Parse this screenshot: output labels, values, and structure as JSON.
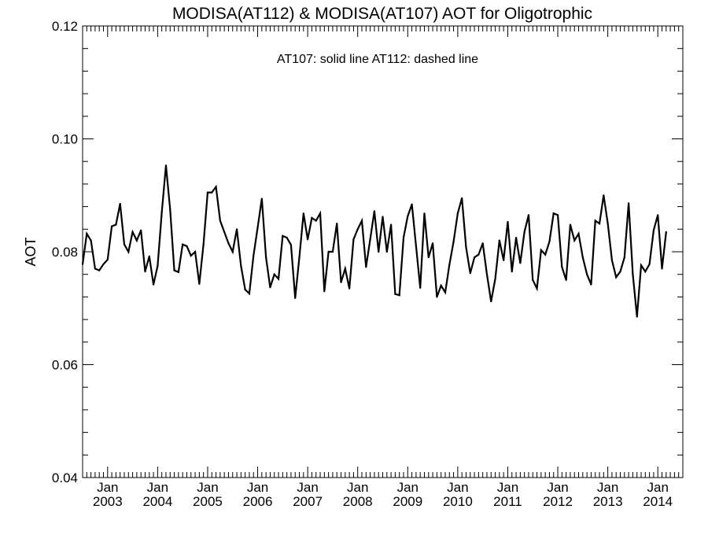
{
  "chart_data": {
    "type": "line",
    "title": "MODISA(AT112) & MODISA(AT107)  AOT for Oligotrophic",
    "annotation": "AT107: solid line   AT112: dashed line",
    "ylabel": "AOT",
    "xlabel": "",
    "xlim": [
      "2002-07",
      "2014-07"
    ],
    "ylim": [
      0.04,
      0.12
    ],
    "y_ticks": [
      "0.04",
      "0.06",
      "0.08",
      "0.10",
      "0.12"
    ],
    "x_tick_month": "Jan",
    "x_tick_years": [
      "2003",
      "2004",
      "2005",
      "2006",
      "2007",
      "2008",
      "2009",
      "2010",
      "2011",
      "2012",
      "2013",
      "2014"
    ],
    "line_color": "#000000",
    "series": [
      {
        "x_start": "2002-07",
        "x_step": "1 month",
        "values": [
          0.0778,
          0.0832,
          0.082,
          0.077,
          0.0767,
          0.0778,
          0.0786,
          0.0845,
          0.0848,
          0.0885,
          0.0813,
          0.08,
          0.0835,
          0.082,
          0.0838,
          0.0765,
          0.0792,
          0.0742,
          0.0775,
          0.087,
          0.0953,
          0.0875,
          0.0767,
          0.0764,
          0.0813,
          0.081,
          0.0793,
          0.08,
          0.0743,
          0.0813,
          0.0905,
          0.0905,
          0.0915,
          0.0855,
          0.0835,
          0.0815,
          0.08,
          0.084,
          0.0775,
          0.0733,
          0.0726,
          0.0793,
          0.0843,
          0.0894,
          0.079,
          0.0737,
          0.076,
          0.0752,
          0.0828,
          0.0825,
          0.0812,
          0.0718,
          0.079,
          0.0868,
          0.0822,
          0.086,
          0.0855,
          0.0868,
          0.073,
          0.08,
          0.08,
          0.085,
          0.0746,
          0.077,
          0.0735,
          0.0822,
          0.084,
          0.0855,
          0.0773,
          0.0822,
          0.0872,
          0.08,
          0.0862,
          0.08,
          0.0848,
          0.0725,
          0.0723,
          0.0825,
          0.0863,
          0.0884,
          0.081,
          0.0736,
          0.0868,
          0.079,
          0.0815,
          0.072,
          0.074,
          0.0728,
          0.0777,
          0.0818,
          0.0868,
          0.0895,
          0.0808,
          0.0762,
          0.079,
          0.0795,
          0.0815,
          0.076,
          0.0712,
          0.0752,
          0.082,
          0.0785,
          0.0853,
          0.0765,
          0.0825,
          0.078,
          0.0835,
          0.0865,
          0.075,
          0.0735,
          0.0803,
          0.0795,
          0.0818,
          0.0868,
          0.0865,
          0.0773,
          0.075,
          0.0848,
          0.082,
          0.0832,
          0.079,
          0.076,
          0.0742,
          0.0855,
          0.085,
          0.09,
          0.085,
          0.0785,
          0.0755,
          0.0765,
          0.079,
          0.0886,
          0.076,
          0.0685,
          0.0776,
          0.0765,
          0.0778,
          0.0838,
          0.0865,
          0.077,
          0.0835
        ]
      }
    ]
  }
}
